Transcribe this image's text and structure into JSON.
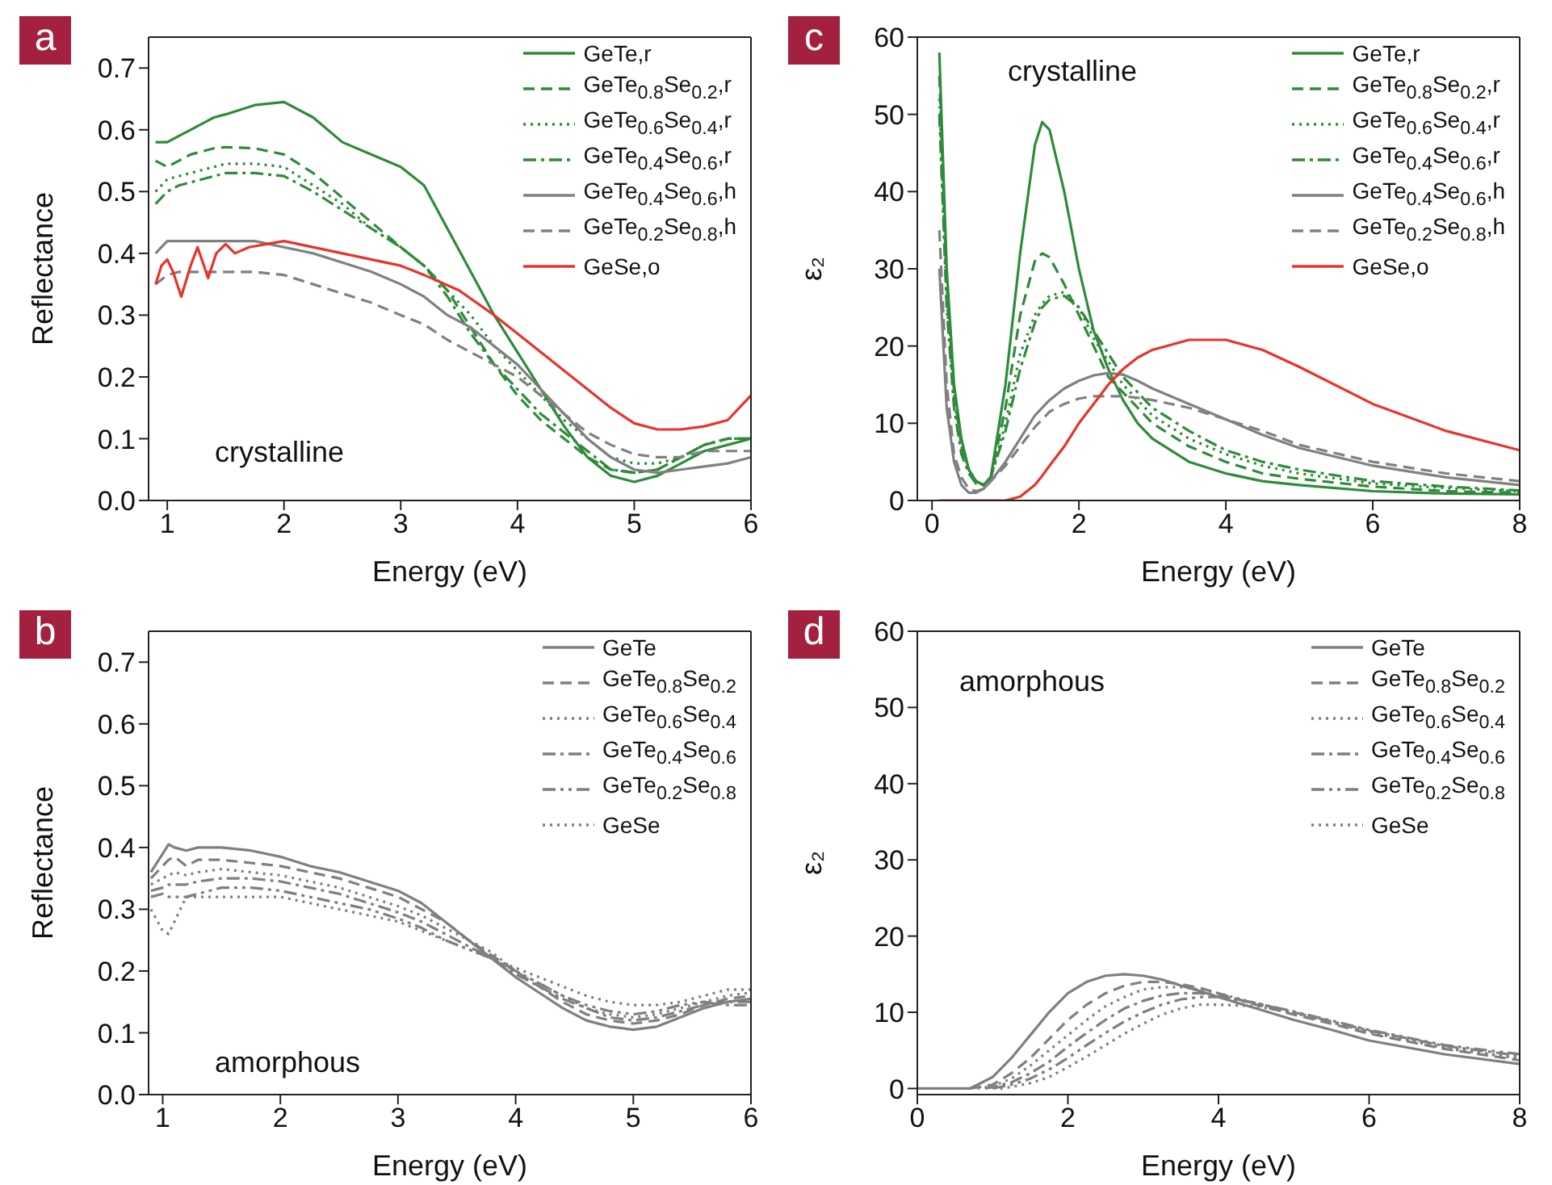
{
  "chart_data": [
    {
      "type": "line",
      "xlabel": "Energy (eV)",
      "ylabel": "Reflectance",
      "annotations": [
        "a",
        "crystalline"
      ],
      "legend": "top right",
      "xlim": [
        0.84,
        6
      ],
      "xticks": [
        1,
        2,
        3,
        4,
        5,
        6
      ],
      "ylim": [
        0,
        0.75
      ],
      "yticks": [
        {
          "value": 0,
          "label": "0.0"
        },
        0.1,
        0.2,
        0.3,
        0.4,
        0.5,
        0.6,
        0.7
      ],
      "x": [
        0.9,
        1.0,
        1.1,
        1.2,
        1.3,
        1.4,
        1.5,
        1.75,
        2.0,
        2.25,
        2.5,
        2.75,
        3.0,
        3.2,
        3.4,
        3.6,
        3.8,
        4.0,
        4.2,
        4.4,
        4.6,
        4.8,
        5.0,
        5.2,
        5.4,
        5.6,
        5.8,
        6.0
      ],
      "series": [
        {
          "name": "GeTe,r",
          "color": "#2e8b3a",
          "line_style": "solid",
          "values": [
            0.58,
            0.58,
            0.59,
            0.6,
            0.61,
            0.62,
            0.625,
            0.64,
            0.645,
            0.62,
            0.58,
            0.56,
            0.54,
            0.51,
            0.44,
            0.37,
            0.3,
            0.24,
            0.18,
            0.12,
            0.07,
            0.04,
            0.03,
            0.04,
            0.06,
            0.08,
            0.09,
            0.1
          ]
        },
        {
          "name": "GeTe$_{0.8}$Se$_{0.2}$,r",
          "color": "#2e8b3a",
          "line_style": "dashed",
          "values": [
            0.55,
            0.54,
            0.55,
            0.56,
            0.565,
            0.57,
            0.572,
            0.57,
            0.56,
            0.53,
            0.49,
            0.45,
            0.41,
            0.38,
            0.34,
            0.28,
            0.22,
            0.17,
            0.13,
            0.1,
            0.07,
            0.05,
            0.045,
            0.05,
            0.07,
            0.09,
            0.1,
            0.1
          ]
        },
        {
          "name": "GeTe$_{0.6}$Se$_{0.4}$,r",
          "color": "#2e8b3a",
          "line_style": "dotted",
          "values": [
            0.5,
            0.52,
            0.525,
            0.53,
            0.535,
            0.54,
            0.545,
            0.545,
            0.54,
            0.51,
            0.48,
            0.44,
            0.41,
            0.38,
            0.34,
            0.3,
            0.25,
            0.21,
            0.17,
            0.13,
            0.1,
            0.07,
            0.06,
            0.06,
            0.07,
            0.09,
            0.1,
            0.1
          ]
        },
        {
          "name": "GeTe$_{0.4}$Se$_{0.6}$,r",
          "color": "#2e8b3a",
          "line_style": "dashdot",
          "values": [
            0.48,
            0.5,
            0.51,
            0.515,
            0.52,
            0.525,
            0.53,
            0.53,
            0.525,
            0.5,
            0.47,
            0.44,
            0.41,
            0.38,
            0.33,
            0.27,
            0.22,
            0.18,
            0.14,
            0.11,
            0.08,
            0.05,
            0.045,
            0.05,
            0.07,
            0.09,
            0.1,
            0.1
          ]
        },
        {
          "name": "GeTe$_{0.4}$Se$_{0.6}$,h",
          "color": "#808080",
          "line_style": "solid",
          "values": [
            0.4,
            0.42,
            0.42,
            0.42,
            0.42,
            0.42,
            0.42,
            0.42,
            0.41,
            0.4,
            0.385,
            0.37,
            0.35,
            0.33,
            0.3,
            0.28,
            0.25,
            0.22,
            0.18,
            0.14,
            0.1,
            0.07,
            0.05,
            0.045,
            0.05,
            0.055,
            0.06,
            0.07
          ]
        },
        {
          "name": "GeTe$_{0.2}$Se$_{0.8}$,h",
          "color": "#808080",
          "line_style": "dashed",
          "values": [
            0.35,
            0.365,
            0.37,
            0.37,
            0.37,
            0.37,
            0.37,
            0.37,
            0.365,
            0.35,
            0.335,
            0.32,
            0.3,
            0.285,
            0.26,
            0.24,
            0.22,
            0.2,
            0.17,
            0.14,
            0.11,
            0.09,
            0.075,
            0.07,
            0.07,
            0.08,
            0.08,
            0.08
          ]
        },
        {
          "name": "GeSe,o",
          "color": "#e8332a",
          "line_style": "solid",
          "x": [
            0.9,
            0.95,
            1.0,
            1.05,
            1.12,
            1.2,
            1.26,
            1.35,
            1.42,
            1.5,
            1.58,
            1.7,
            2.0,
            2.5,
            3.0,
            3.2,
            3.5,
            3.8,
            4.0,
            4.2,
            4.4,
            4.6,
            4.8,
            5.0,
            5.2,
            5.4,
            5.6,
            5.8,
            6.0
          ],
          "values": [
            0.35,
            0.38,
            0.39,
            0.37,
            0.33,
            0.38,
            0.41,
            0.36,
            0.4,
            0.415,
            0.4,
            0.41,
            0.42,
            0.4,
            0.38,
            0.365,
            0.34,
            0.3,
            0.27,
            0.24,
            0.21,
            0.18,
            0.15,
            0.125,
            0.115,
            0.115,
            0.12,
            0.13,
            0.17
          ]
        }
      ]
    },
    {
      "type": "line",
      "xlabel": "Energy (eV)",
      "ylabel": "ε₂",
      "annotations": [
        "c",
        "crystalline"
      ],
      "legend": "top right",
      "xlim": [
        -0.2,
        8
      ],
      "xticks": [
        0,
        2,
        4,
        6,
        8
      ],
      "ylim": [
        0,
        60
      ],
      "yticks": [
        0,
        10,
        20,
        30,
        40,
        50,
        60
      ],
      "x": [
        0.1,
        0.2,
        0.3,
        0.4,
        0.5,
        0.6,
        0.7,
        0.8,
        1.0,
        1.2,
        1.4,
        1.5,
        1.6,
        1.8,
        2.0,
        2.2,
        2.4,
        2.6,
        2.8,
        3.0,
        3.5,
        4.0,
        4.5,
        5.0,
        6.0,
        7.0,
        8.0
      ],
      "series": [
        {
          "name": "GeTe,r",
          "color": "#2e8b3a",
          "line_style": "solid",
          "values": [
            58,
            30,
            15,
            8,
            4,
            2.5,
            2,
            3,
            15,
            32,
            46,
            49,
            48,
            40,
            30,
            22,
            17,
            13,
            10,
            8,
            5,
            3.5,
            2.5,
            2,
            1.2,
            0.9,
            0.8
          ]
        },
        {
          "name": "GeTe$_{0.8}$Se$_{0.2}$,r",
          "color": "#2e8b3a",
          "line_style": "dashed",
          "values": [
            55,
            28,
            14,
            7,
            4,
            2.5,
            2,
            3,
            12,
            24,
            31,
            32,
            31.5,
            28,
            24,
            20,
            16,
            14,
            12,
            10,
            7,
            5,
            3.5,
            2.8,
            1.8,
            1.2,
            1.0
          ]
        },
        {
          "name": "GeTe$_{0.6}$Se$_{0.4}$,r",
          "color": "#2e8b3a",
          "line_style": "dotted",
          "values": [
            52,
            26,
            13,
            7,
            4,
            2.5,
            2,
            3,
            10,
            19,
            24,
            25.5,
            26.5,
            27,
            25,
            21,
            18,
            15,
            13,
            11,
            8,
            6,
            4.5,
            3.5,
            2.2,
            1.6,
            1.2
          ]
        },
        {
          "name": "GeTe$_{0.4}$Se$_{0.6}$,r",
          "color": "#2e8b3a",
          "line_style": "dashdot",
          "values": [
            50,
            25,
            12,
            6,
            3.5,
            2.2,
            2,
            3,
            9,
            17,
            23,
            25,
            26,
            26.5,
            25,
            22,
            19,
            16,
            14,
            12,
            9,
            6.5,
            5,
            4,
            2.5,
            1.8,
            1.3
          ]
        },
        {
          "name": "GeTe$_{0.4}$Se$_{0.6}$,h",
          "color": "#808080",
          "line_style": "solid",
          "values": [
            30,
            12,
            5,
            2,
            1,
            1,
            1.5,
            2.5,
            5,
            8,
            11,
            12,
            13,
            14.5,
            15.5,
            16.2,
            16.5,
            16.3,
            15.5,
            14.5,
            12.5,
            10.5,
            8.5,
            6.8,
            4.5,
            3,
            2
          ]
        },
        {
          "name": "GeTe$_{0.2}$Se$_{0.8}$,h",
          "color": "#808080",
          "line_style": "dashed",
          "values": [
            35,
            15,
            6,
            3,
            1.5,
            1.2,
            1.5,
            2.5,
            4.5,
            7,
            9.5,
            10.5,
            11.5,
            12.5,
            13.2,
            13.5,
            13.5,
            13.5,
            13.3,
            13,
            12,
            10.5,
            9,
            7.2,
            5,
            3.5,
            2.5
          ]
        },
        {
          "name": "GeSe,o",
          "color": "#e8332a",
          "line_style": "solid",
          "values": [
            0,
            0,
            0,
            0,
            0,
            0,
            0,
            0,
            0,
            0.5,
            2,
            3.2,
            4.5,
            7,
            10,
            12.5,
            15,
            17,
            18.5,
            19.5,
            20.8,
            20.8,
            19.5,
            17.3,
            12.5,
            9,
            6.5
          ]
        }
      ]
    },
    {
      "type": "line",
      "xlabel": "Energy (eV)",
      "ylabel": "Reflectance",
      "annotations": [
        "b",
        "amorphous"
      ],
      "legend": "top right",
      "xlim": [
        0.88,
        6
      ],
      "xticks": [
        1,
        2,
        3,
        4,
        5,
        6
      ],
      "ylim": [
        0,
        0.75
      ],
      "yticks": [
        {
          "value": 0,
          "label": "0.0"
        },
        0.1,
        0.2,
        0.3,
        0.4,
        0.5,
        0.6,
        0.7
      ],
      "x": [
        0.9,
        1.0,
        1.05,
        1.1,
        1.2,
        1.3,
        1.5,
        1.75,
        2.0,
        2.25,
        2.5,
        2.75,
        3.0,
        3.2,
        3.4,
        3.6,
        3.8,
        4.0,
        4.2,
        4.4,
        4.6,
        4.8,
        5.0,
        5.2,
        5.4,
        5.6,
        5.8,
        6.0
      ],
      "series": [
        {
          "name": "GeTe",
          "color": "#7f7f7f",
          "line_style": "solid",
          "values": [
            0.36,
            0.39,
            0.405,
            0.4,
            0.395,
            0.4,
            0.4,
            0.395,
            0.385,
            0.37,
            0.36,
            0.345,
            0.33,
            0.31,
            0.28,
            0.25,
            0.22,
            0.19,
            0.165,
            0.14,
            0.12,
            0.11,
            0.105,
            0.11,
            0.125,
            0.14,
            0.15,
            0.155
          ]
        },
        {
          "name": "GeTe$_{0.8}$Se$_{0.2}$",
          "color": "#7f7f7f",
          "line_style": "dashed",
          "values": [
            0.35,
            0.37,
            0.38,
            0.385,
            0.37,
            0.38,
            0.38,
            0.375,
            0.37,
            0.36,
            0.35,
            0.335,
            0.32,
            0.3,
            0.28,
            0.25,
            0.225,
            0.2,
            0.175,
            0.15,
            0.13,
            0.12,
            0.115,
            0.12,
            0.13,
            0.145,
            0.155,
            0.16
          ]
        },
        {
          "name": "GeTe$_{0.6}$Se$_{0.4}$",
          "color": "#7f7f7f",
          "line_style": "dotted",
          "values": [
            0.34,
            0.35,
            0.355,
            0.36,
            0.355,
            0.36,
            0.365,
            0.36,
            0.355,
            0.345,
            0.335,
            0.32,
            0.305,
            0.29,
            0.27,
            0.25,
            0.23,
            0.2,
            0.18,
            0.16,
            0.14,
            0.13,
            0.125,
            0.13,
            0.14,
            0.15,
            0.16,
            0.165
          ]
        },
        {
          "name": "GeTe$_{0.4}$Se$_{0.6}$",
          "color": "#7f7f7f",
          "line_style": "dashdot",
          "values": [
            0.33,
            0.335,
            0.34,
            0.34,
            0.34,
            0.345,
            0.35,
            0.35,
            0.345,
            0.335,
            0.325,
            0.31,
            0.295,
            0.28,
            0.26,
            0.24,
            0.22,
            0.195,
            0.175,
            0.155,
            0.14,
            0.125,
            0.12,
            0.125,
            0.135,
            0.145,
            0.15,
            0.15
          ]
        },
        {
          "name": "GeTe$_{0.2}$Se$_{0.8}$",
          "color": "#7f7f7f",
          "line_style": "dashdotdot",
          "values": [
            0.32,
            0.325,
            0.32,
            0.32,
            0.32,
            0.325,
            0.335,
            0.335,
            0.33,
            0.32,
            0.31,
            0.3,
            0.285,
            0.27,
            0.25,
            0.235,
            0.22,
            0.2,
            0.18,
            0.16,
            0.145,
            0.135,
            0.13,
            0.135,
            0.145,
            0.15,
            0.145,
            0.145
          ]
        },
        {
          "name": "GeSe",
          "color": "#7f7f7f",
          "line_style": "dotted",
          "values": [
            0.3,
            0.265,
            0.26,
            0.28,
            0.32,
            0.32,
            0.32,
            0.32,
            0.32,
            0.31,
            0.3,
            0.29,
            0.28,
            0.265,
            0.25,
            0.235,
            0.22,
            0.205,
            0.19,
            0.175,
            0.16,
            0.15,
            0.145,
            0.145,
            0.15,
            0.16,
            0.17,
            0.17
          ]
        }
      ]
    },
    {
      "type": "line",
      "xlabel": "Energy (eV)",
      "ylabel": "ε₂",
      "annotations": [
        "d",
        "amorphous"
      ],
      "legend": "top right",
      "xlim": [
        0,
        8
      ],
      "xticks": [
        0,
        2,
        4,
        6,
        8
      ],
      "ylim": [
        -0.8,
        60
      ],
      "yticks": [
        0,
        10,
        20,
        30,
        40,
        50,
        60
      ],
      "x": [
        0,
        0.7,
        1.0,
        1.25,
        1.5,
        1.75,
        2.0,
        2.25,
        2.5,
        2.75,
        3.0,
        3.25,
        3.5,
        3.75,
        4.0,
        4.5,
        5.0,
        5.5,
        6.0,
        7.0,
        8.0
      ],
      "series": [
        {
          "name": "GeTe",
          "color": "#7f7f7f",
          "line_style": "solid",
          "values": [
            0,
            0,
            1.5,
            4,
            7,
            10,
            12.5,
            14,
            14.8,
            15,
            14.8,
            14.3,
            13.5,
            12.8,
            12,
            10.5,
            9,
            7.7,
            6.3,
            4.5,
            3.2
          ]
        },
        {
          "name": "GeTe$_{0.8}$Se$_{0.2}$",
          "color": "#7f7f7f",
          "line_style": "dashed",
          "x": [
            0.7,
            1.0,
            1.25,
            1.5,
            1.75,
            2.0,
            2.25,
            2.5,
            2.75,
            3.0,
            3.25,
            3.5,
            3.75,
            4.0,
            4.5,
            5.0,
            5.5,
            6.0,
            7.0,
            8.0
          ],
          "values": [
            0,
            0.5,
            2,
            4,
            6.5,
            9,
            11,
            12.5,
            13.5,
            14,
            14,
            13.7,
            13.2,
            12.5,
            11,
            9.7,
            8.5,
            7.2,
            5.2,
            3.7
          ]
        },
        {
          "name": "GeTe$_{0.6}$Se$_{0.4}$",
          "color": "#7f7f7f",
          "line_style": "dotted",
          "x": [
            0.8,
            1.0,
            1.25,
            1.5,
            1.75,
            2.0,
            2.25,
            2.5,
            2.75,
            3.0,
            3.25,
            3.5,
            3.75,
            4.0,
            4.5,
            5.0,
            5.5,
            6.0,
            7.0,
            8.0
          ],
          "values": [
            0,
            0.3,
            1.3,
            3,
            5,
            7,
            9,
            10.8,
            12,
            13,
            13.3,
            13.3,
            13,
            12.5,
            11.2,
            10,
            8.7,
            7.5,
            5.4,
            4.0
          ]
        },
        {
          "name": "GeTe$_{0.4}$Se$_{0.6}$",
          "color": "#7f7f7f",
          "line_style": "dashdot",
          "x": [
            0.9,
            1.0,
            1.25,
            1.5,
            1.75,
            2.0,
            2.25,
            2.5,
            2.75,
            3.0,
            3.25,
            3.5,
            3.75,
            4.0,
            4.5,
            5.0,
            5.5,
            6.0,
            7.0,
            8.0
          ],
          "values": [
            0,
            0.2,
            0.8,
            2,
            3.5,
            5.5,
            7.3,
            9,
            10.5,
            11.5,
            12.2,
            12.5,
            12.5,
            12.2,
            11.2,
            10,
            8.8,
            7.6,
            5.6,
            4.3
          ]
        },
        {
          "name": "GeTe$_{0.2}$Se$_{0.8}$",
          "color": "#7f7f7f",
          "line_style": "dashdotdot",
          "x": [
            1.0,
            1.25,
            1.5,
            1.75,
            2.0,
            2.25,
            2.5,
            2.75,
            3.0,
            3.25,
            3.5,
            3.75,
            4.0,
            4.5,
            5.0,
            5.5,
            6.0,
            7.0,
            8.0
          ],
          "values": [
            0,
            0.5,
            1.3,
            2.5,
            4,
            5.7,
            7.3,
            8.8,
            10,
            11,
            11.7,
            12,
            12,
            11.2,
            10.1,
            8.9,
            7.7,
            5.7,
            4.5
          ]
        },
        {
          "name": "GeSe",
          "color": "#7f7f7f",
          "line_style": "dotted",
          "x": [
            1.1,
            1.25,
            1.5,
            1.75,
            2.0,
            2.25,
            2.5,
            2.75,
            3.0,
            3.25,
            3.5,
            3.75,
            4.0,
            4.5,
            5.0,
            5.5,
            6.0,
            7.0,
            8.0
          ],
          "values": [
            0,
            0.2,
            0.7,
            1.5,
            2.8,
            4.2,
            5.7,
            7.2,
            8.5,
            9.7,
            10.5,
            11,
            11,
            10.8,
            9.9,
            8.7,
            7.4,
            5.3,
            3.9
          ]
        }
      ]
    }
  ]
}
